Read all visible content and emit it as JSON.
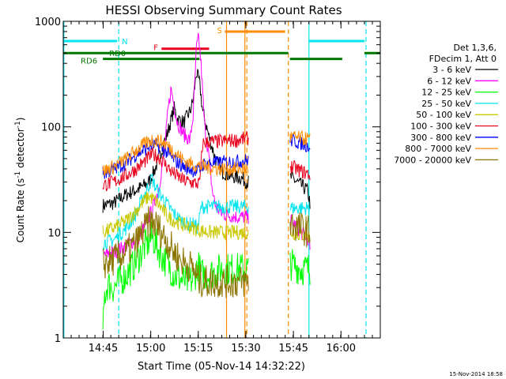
{
  "chart_data": {
    "type": "line",
    "title": "HESSI Observing Summary Count Rates",
    "xlabel": "Start Time (05-Nov-14 14:32:22)",
    "ylabel_main": "Count Rate (s",
    "ylabel_sup1": "-1",
    "ylabel_mid": " detector",
    "ylabel_sup2": "-1",
    "ylabel_end": ")",
    "footer": "15-Nov-2014 18:58",
    "x_unit": "minutes since 14:32:22",
    "xlim": [
      0,
      100
    ],
    "ylim": [
      1,
      1000
    ],
    "y_scale": "log",
    "x_ticks": [
      {
        "v": 12.6,
        "label": "14:45"
      },
      {
        "v": 27.6,
        "label": "15:00"
      },
      {
        "v": 42.6,
        "label": "15:15"
      },
      {
        "v": 57.6,
        "label": "15:30"
      },
      {
        "v": 72.6,
        "label": "15:45"
      },
      {
        "v": 87.6,
        "label": "16:00"
      }
    ],
    "y_ticks": [
      {
        "v": 1,
        "label": "1"
      },
      {
        "v": 10,
        "label": "10"
      },
      {
        "v": 100,
        "label": "100"
      },
      {
        "v": 1000,
        "label": "1000"
      }
    ],
    "legend": {
      "header1": "Det 1,3,6,",
      "header2": "FDecim 1, Att 0",
      "placement": "right"
    },
    "attenuator_bars": [
      {
        "label": "N",
        "color": "#00e5ee",
        "y": 650,
        "segments": [
          [
            0,
            17
          ],
          [
            77.5,
            95
          ]
        ]
      },
      {
        "label": "F",
        "color": "#e8001c",
        "y": 550,
        "segments": [
          [
            31,
            46
          ]
        ]
      },
      {
        "label": "S",
        "color": "#ff8c00",
        "y": 800,
        "segments": [
          [
            51,
            70
          ]
        ]
      },
      {
        "label": "RD0",
        "color": "#007800",
        "y": 500,
        "segments": [
          [
            0,
            71
          ],
          [
            95,
            100
          ]
        ]
      },
      {
        "label": "RD6",
        "color": "#007800",
        "y": 440,
        "segments": [
          [
            12.5,
            43
          ],
          [
            71.5,
            88
          ]
        ]
      }
    ],
    "vlines": [
      {
        "x": 0.2,
        "color": "#00e5ee",
        "dash": false
      },
      {
        "x": 17.5,
        "color": "#00e5ee",
        "dash": true
      },
      {
        "x": 77.5,
        "color": "#00e5ee",
        "dash": false
      },
      {
        "x": 95.5,
        "color": "#00e5ee",
        "dash": true
      },
      {
        "x": 51.5,
        "color": "#ff8c00",
        "dash": false
      },
      {
        "x": 57.3,
        "color": "#ff8c00",
        "dash": false
      },
      {
        "x": 57.9,
        "color": "#ff8c00",
        "dash": true
      },
      {
        "x": 71,
        "color": "#ff8c00",
        "dash": true
      }
    ],
    "gap": [
      58.5,
      71.5
    ],
    "series": [
      {
        "name": "3 - 6 keV",
        "color": "#000000",
        "points": [
          [
            12.5,
            18
          ],
          [
            16,
            19
          ],
          [
            20,
            23
          ],
          [
            24,
            26
          ],
          [
            27,
            30
          ],
          [
            29,
            40
          ],
          [
            31,
            60
          ],
          [
            33,
            90
          ],
          [
            35,
            150
          ],
          [
            36,
            120
          ],
          [
            38,
            110
          ],
          [
            40,
            140
          ],
          [
            41,
            180
          ],
          [
            42,
            330
          ],
          [
            43,
            260
          ],
          [
            44,
            140
          ],
          [
            46,
            80
          ],
          [
            48,
            50
          ],
          [
            50,
            38
          ],
          [
            53,
            34
          ],
          [
            56,
            33
          ],
          [
            58,
            30
          ],
          [
            72,
            33
          ],
          [
            75,
            28
          ],
          [
            77,
            25
          ],
          [
            78,
            18
          ]
        ]
      },
      {
        "name": "6 - 12 keV",
        "color": "#ff00ff",
        "points": [
          [
            12.5,
            6
          ],
          [
            16,
            6.5
          ],
          [
            20,
            7.5
          ],
          [
            24,
            9
          ],
          [
            26,
            12
          ],
          [
            28,
            16
          ],
          [
            30,
            25
          ],
          [
            32,
            60
          ],
          [
            33,
            140
          ],
          [
            34,
            230
          ],
          [
            35,
            160
          ],
          [
            36,
            110
          ],
          [
            38,
            85
          ],
          [
            40,
            75
          ],
          [
            41,
            130
          ],
          [
            42,
            550
          ],
          [
            42.7,
            700
          ],
          [
            43.5,
            380
          ],
          [
            44.5,
            110
          ],
          [
            46,
            50
          ],
          [
            47,
            25
          ],
          [
            48,
            18
          ],
          [
            50,
            15
          ],
          [
            55,
            14
          ],
          [
            58,
            14
          ],
          [
            72,
            13
          ],
          [
            75,
            10
          ],
          [
            77,
            9
          ],
          [
            78,
            7
          ]
        ]
      },
      {
        "name": "12 - 25 keV",
        "color": "#00ff00",
        "points": [
          [
            12.5,
            1
          ],
          [
            13,
            2.5
          ],
          [
            14,
            3.2
          ],
          [
            16,
            3
          ],
          [
            18,
            3.5
          ],
          [
            20,
            4
          ],
          [
            22,
            4.8
          ],
          [
            24,
            6
          ],
          [
            26,
            7.5
          ],
          [
            28,
            9
          ],
          [
            29,
            8
          ],
          [
            31,
            6
          ],
          [
            33,
            5
          ],
          [
            35,
            4
          ],
          [
            37,
            3.6
          ],
          [
            39,
            3.4
          ],
          [
            41,
            3.5
          ],
          [
            42.5,
            5
          ],
          [
            43.5,
            4
          ],
          [
            46,
            4
          ],
          [
            50,
            4.5
          ],
          [
            55,
            4.5
          ],
          [
            58,
            4.5
          ],
          [
            72,
            5
          ],
          [
            75,
            4.5
          ],
          [
            78,
            4.5
          ]
        ]
      },
      {
        "name": "25 - 50 keV",
        "color": "#00e5ee",
        "points": [
          [
            12.5,
            8
          ],
          [
            16,
            8.5
          ],
          [
            20,
            11
          ],
          [
            23,
            15
          ],
          [
            25,
            21
          ],
          [
            27,
            28
          ],
          [
            28,
            33
          ],
          [
            29,
            27
          ],
          [
            31,
            22
          ],
          [
            33,
            18
          ],
          [
            35,
            15
          ],
          [
            37,
            13
          ],
          [
            39,
            12
          ],
          [
            41,
            12
          ],
          [
            42.5,
            11
          ],
          [
            43.5,
            17.5
          ],
          [
            46,
            17.5
          ],
          [
            50,
            17.5
          ],
          [
            55,
            17.5
          ],
          [
            58,
            17.5
          ],
          [
            72,
            17
          ],
          [
            75,
            17
          ],
          [
            78,
            17
          ]
        ]
      },
      {
        "name": "50 - 100 keV",
        "color": "#c8c800",
        "points": [
          [
            12.5,
            10
          ],
          [
            16,
            11
          ],
          [
            20,
            13
          ],
          [
            23,
            16
          ],
          [
            25,
            19
          ],
          [
            27,
            22
          ],
          [
            29,
            20
          ],
          [
            31,
            17
          ],
          [
            33,
            14
          ],
          [
            35,
            13
          ],
          [
            37,
            12
          ],
          [
            39,
            11.5
          ],
          [
            41,
            11
          ],
          [
            43,
            10.5
          ],
          [
            46,
            10
          ],
          [
            50,
            10
          ],
          [
            55,
            10
          ],
          [
            58,
            10
          ],
          [
            72,
            10
          ],
          [
            75,
            9.5
          ],
          [
            78,
            9
          ]
        ]
      },
      {
        "name": "100 - 300 keV",
        "color": "#e8001c",
        "points": [
          [
            12.5,
            28
          ],
          [
            16,
            30
          ],
          [
            20,
            35
          ],
          [
            23,
            40
          ],
          [
            26,
            48
          ],
          [
            28,
            55
          ],
          [
            30,
            52
          ],
          [
            32,
            45
          ],
          [
            34,
            38
          ],
          [
            36,
            34
          ],
          [
            38,
            31
          ],
          [
            40,
            30
          ],
          [
            42,
            29
          ],
          [
            43,
            29
          ],
          [
            44,
            70
          ],
          [
            46,
            72
          ],
          [
            50,
            73
          ],
          [
            55,
            75
          ],
          [
            58,
            78
          ],
          [
            72,
            42
          ],
          [
            75,
            38
          ],
          [
            78,
            35
          ]
        ]
      },
      {
        "name": "300 - 800 keV",
        "color": "#0000ff",
        "points": [
          [
            12.5,
            36
          ],
          [
            16,
            40
          ],
          [
            20,
            46
          ],
          [
            23,
            55
          ],
          [
            26,
            62
          ],
          [
            28,
            68
          ],
          [
            30,
            66
          ],
          [
            32,
            60
          ],
          [
            34,
            52
          ],
          [
            36,
            46
          ],
          [
            38,
            42
          ],
          [
            40,
            40
          ],
          [
            42,
            38
          ],
          [
            43,
            39
          ],
          [
            44,
            44
          ],
          [
            46,
            45
          ],
          [
            50,
            46
          ],
          [
            55,
            47
          ],
          [
            58,
            48
          ],
          [
            72,
            75
          ],
          [
            75,
            70
          ],
          [
            78,
            65
          ]
        ]
      },
      {
        "name": "800 - 7000 keV",
        "color": "#ff8c00",
        "points": [
          [
            12.5,
            38
          ],
          [
            16,
            42
          ],
          [
            20,
            50
          ],
          [
            23,
            60
          ],
          [
            26,
            70
          ],
          [
            28,
            75
          ],
          [
            30,
            74
          ],
          [
            32,
            70
          ],
          [
            34,
            62
          ],
          [
            36,
            55
          ],
          [
            38,
            48
          ],
          [
            40,
            45
          ],
          [
            42,
            43
          ],
          [
            44,
            42
          ],
          [
            46,
            41
          ],
          [
            50,
            40
          ],
          [
            55,
            40
          ],
          [
            58,
            40
          ],
          [
            72,
            80
          ],
          [
            75,
            78
          ],
          [
            78,
            76
          ]
        ]
      },
      {
        "name": "7000 - 20000 keV",
        "color": "#8b7500",
        "points": [
          [
            12.5,
            5
          ],
          [
            16,
            5.5
          ],
          [
            20,
            6.5
          ],
          [
            23,
            8
          ],
          [
            25,
            10
          ],
          [
            27,
            12.5
          ],
          [
            29,
            12
          ],
          [
            31,
            10
          ],
          [
            33,
            8
          ],
          [
            35,
            6.5
          ],
          [
            37,
            5.5
          ],
          [
            39,
            5
          ],
          [
            41,
            4.6
          ],
          [
            42.5,
            3.5
          ],
          [
            46,
            3.4
          ],
          [
            50,
            3.4
          ],
          [
            55,
            3.4
          ],
          [
            58,
            3.4
          ],
          [
            72,
            12
          ],
          [
            75,
            11
          ],
          [
            78,
            10
          ]
        ]
      }
    ]
  }
}
